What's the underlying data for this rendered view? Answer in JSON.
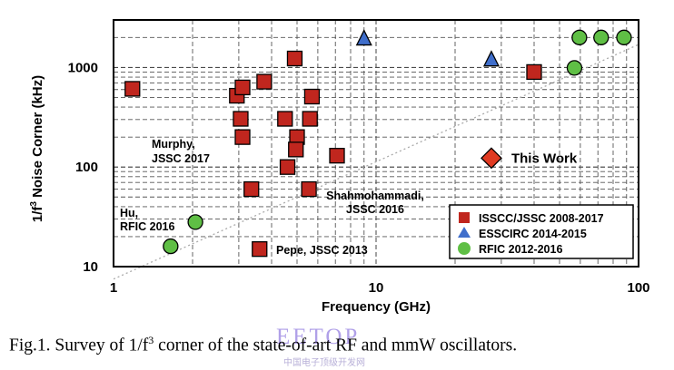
{
  "chart_data": {
    "type": "scatter",
    "title": "",
    "xlabel": "Frequency (GHz)",
    "ylabel": "1/f³ Noise Corner (kHz)",
    "xscale": "log",
    "yscale": "log",
    "xlim": [
      1,
      100
    ],
    "ylim": [
      10,
      3000
    ],
    "grid": true,
    "x_ticks": [
      {
        "value": 1,
        "label": "1"
      },
      {
        "value": 10,
        "label": "10"
      },
      {
        "value": 100,
        "label": "100"
      }
    ],
    "y_ticks": [
      {
        "value": 10,
        "label": "10"
      },
      {
        "value": 100,
        "label": "100"
      },
      {
        "value": 1000,
        "label": "1000"
      }
    ],
    "legend_position": "bottom-right",
    "series": [
      {
        "name": "ISSCC/JSSC 2008-2017",
        "marker": "square",
        "color": "#c0261e",
        "points": [
          {
            "x": 1.18,
            "y": 610
          },
          {
            "x": 2.95,
            "y": 520
          },
          {
            "x": 3.1,
            "y": 630
          },
          {
            "x": 3.05,
            "y": 305
          },
          {
            "x": 3.1,
            "y": 200
          },
          {
            "x": 3.75,
            "y": 720
          },
          {
            "x": 4.9,
            "y": 1230
          },
          {
            "x": 4.5,
            "y": 305
          },
          {
            "x": 5.7,
            "y": 510
          },
          {
            "x": 5.6,
            "y": 305
          },
          {
            "x": 5.0,
            "y": 200
          },
          {
            "x": 4.95,
            "y": 150
          },
          {
            "x": 4.6,
            "y": 100
          },
          {
            "x": 7.1,
            "y": 130
          },
          {
            "x": 3.35,
            "y": 60
          },
          {
            "x": 5.55,
            "y": 60
          },
          {
            "x": 3.6,
            "y": 15
          },
          {
            "x": 40.0,
            "y": 900
          }
        ]
      },
      {
        "name": "ESSCIRC 2014-2015",
        "marker": "triangle",
        "color": "#3f6ecb",
        "points": [
          {
            "x": 9.0,
            "y": 1950
          },
          {
            "x": 27.5,
            "y": 1200
          }
        ]
      },
      {
        "name": "RFIC 2012-2016",
        "marker": "circle",
        "color": "#5fbf45",
        "points": [
          {
            "x": 1.65,
            "y": 16
          },
          {
            "x": 2.05,
            "y": 28
          },
          {
            "x": 57.0,
            "y": 990
          },
          {
            "x": 59.5,
            "y": 2000
          },
          {
            "x": 72.0,
            "y": 2000
          },
          {
            "x": 88.0,
            "y": 2000
          }
        ]
      },
      {
        "name": "This Work",
        "marker": "diamond",
        "color": "#e03a22",
        "points": [
          {
            "x": 27.5,
            "y": 123
          }
        ]
      }
    ],
    "trend_line": {
      "from": [
        1,
        7.5
      ],
      "to": [
        100,
        1700
      ],
      "style": "dotted"
    },
    "annotations": [
      {
        "lines": [
          "Murphy,",
          "JSSC 2017"
        ],
        "anchor": "start"
      },
      {
        "lines": [
          "Hu,",
          "RFIC 2016"
        ],
        "anchor": "start"
      },
      {
        "lines": [
          "Shahmohammadi,",
          "JSSC 2016"
        ],
        "anchor": "middle"
      },
      {
        "lines": [
          "Pepe, JSSC 2013"
        ],
        "anchor": "start"
      }
    ],
    "this_work_label": "This Work"
  },
  "watermark": {
    "main": "EETOP",
    "sub": "中国电子顶级开发网"
  },
  "caption": {
    "prefix": "Fig.1. Survey of 1/f",
    "superscript": "3",
    "suffix": " corner of the state-of-art RF and mmW oscillators."
  }
}
